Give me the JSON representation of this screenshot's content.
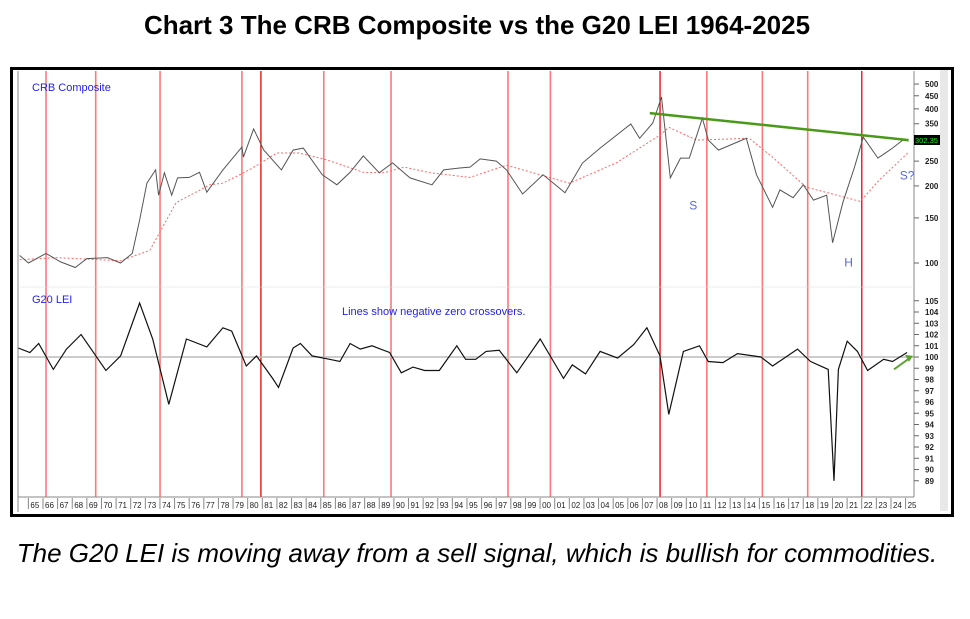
{
  "title": "Chart 3 The CRB Composite vs the G20 LEI 1964-2025",
  "caption": "The G20 LEI is moving away from a sell signal, which is bullish for commodities.",
  "chart_data": [
    {
      "type": "line",
      "title": "CRB Composite",
      "yscale": "log",
      "ylim": [
        90,
        560
      ],
      "xlim": [
        1964.1,
        2025.2
      ],
      "yticks": [
        500,
        450,
        400,
        350,
        250,
        200,
        150,
        100
      ],
      "last_value_label": "302.35",
      "colors": {
        "price": "#555555",
        "ma": "#ff6666",
        "trend": "#4a9a1a",
        "label": "#2222ee",
        "annot": "#5566ee",
        "badge_bg": "#000000",
        "badge_fg": "#22ee22"
      },
      "series": [
        {
          "name": "CRB Composite",
          "x": [
            1964.2,
            1964.8,
            1966,
            1967,
            1968,
            1968.8,
            1970.2,
            1971.1,
            1971.9,
            1972.4,
            1972.9,
            1973.5,
            1973.7,
            1974.1,
            1974.6,
            1975.0,
            1975.8,
            1976.5,
            1977.0,
            1978.1,
            1979.4,
            1979.5,
            1980.2,
            1980.9,
            1982.1,
            1982.9,
            1983.6,
            1984.9,
            1985.9,
            1986.8,
            1987.7,
            1988.8,
            1989.7,
            1990.9,
            1992.4,
            1993.2,
            1994.3,
            1995.0,
            1995.7,
            1996.8,
            1997.5,
            1998.6,
            2000.0,
            2001.5,
            2002.7,
            2003.9,
            2006.0,
            2006.6,
            2007.5,
            2008.1,
            2008.7,
            2009.4,
            2010.0,
            2010.9,
            2011.3,
            2012.0,
            2013.3,
            2013.9,
            2014.6,
            2015.7,
            2016.2,
            2017.1,
            2017.8,
            2018.5,
            2019.4,
            2019.8,
            2020.5,
            2021.3,
            2021.9,
            2022.9,
            2023.5,
            2023.9,
            2024.6,
            2025.0
          ],
          "y": [
            107,
            100,
            109,
            101,
            96,
            104,
            105,
            100,
            109,
            147,
            205,
            231,
            184,
            225,
            184,
            215,
            216,
            226,
            189,
            231,
            284,
            259,
            334,
            276,
            231,
            276,
            281,
            221,
            202,
            226,
            262,
            225,
            246,
            215,
            202,
            231,
            235,
            237,
            255,
            250,
            231,
            186,
            221,
            188,
            246,
            281,
            349,
            307,
            352,
            445,
            215,
            257,
            257,
            368,
            302,
            276,
            297,
            307,
            221,
            165,
            193,
            180,
            202,
            176,
            184,
            120,
            172,
            237,
            310,
            257,
            271,
            281,
            302,
            300
          ]
        },
        {
          "name": "Moving average",
          "x": [
            1964.2,
            1966.7,
            1971.1,
            1973.1,
            1974.9,
            1977.2,
            1978.1,
            1979.9,
            1981.8,
            1983.3,
            1985.2,
            1987.7,
            1989.1,
            1990.5,
            1992.3,
            1995.0,
            1997.5,
            2001.8,
            2005.0,
            2008.0,
            2008.6,
            2010.5,
            2014.1,
            2015.7,
            2018.0,
            2020.1,
            2021.7,
            2023.0,
            2025.0
          ],
          "y": [
            103,
            105,
            102,
            112,
            172,
            202,
            205,
            231,
            269,
            269,
            253,
            226,
            225,
            237,
            225,
            216,
            241,
            205,
            246,
            316,
            339,
            302,
            307,
            259,
            198,
            184,
            174,
            211,
            271
          ]
        },
        {
          "name": "Trendline",
          "x": [
            2007.3,
            2025.0
          ],
          "y": [
            385,
            302
          ]
        }
      ],
      "annotations": [
        {
          "text": "S",
          "x": 2010.0,
          "y": 162
        },
        {
          "text": "H",
          "x": 2020.6,
          "y": 97
        },
        {
          "text": "S?",
          "x": 2024.4,
          "y": 212
        }
      ]
    },
    {
      "type": "line",
      "title": "G20 LEI",
      "ylim": [
        88.5,
        106
      ],
      "xlim": [
        1964.1,
        2025.2
      ],
      "yticks": [
        105,
        104,
        103,
        102,
        101,
        100,
        99,
        98,
        97,
        96,
        95,
        94,
        93,
        92,
        91,
        90,
        89
      ],
      "zero_line": 100,
      "note": "Lines show negative zero crossovers.",
      "series": [
        {
          "name": "G20 LEI",
          "x": [
            1964.1,
            1964.9,
            1965.5,
            1966.5,
            1967.4,
            1968.4,
            1970.1,
            1971.1,
            1972.4,
            1973.3,
            1974.4,
            1975.6,
            1977.0,
            1978.1,
            1978.7,
            1979.7,
            1980.4,
            1981.5,
            1981.9,
            1982.9,
            1983.4,
            1984.2,
            1985.4,
            1986.1,
            1986.8,
            1987.5,
            1988.3,
            1989.5,
            1990.3,
            1991.1,
            1991.9,
            1992.9,
            1994.1,
            1994.7,
            1995.4,
            1996.1,
            1997.0,
            1998.2,
            1999.8,
            2001.4,
            2002.0,
            2002.9,
            2003.9,
            2005.1,
            2006.2,
            2007.1,
            2008.0,
            2008.6,
            2009.6,
            2010.7,
            2011.3,
            2012.3,
            2013.3,
            2014.9,
            2015.7,
            2017.4,
            2018.3,
            2019.5,
            2019.9,
            2020.2,
            2020.8,
            2021.5,
            2022.2,
            2023.3,
            2023.9,
            2024.9
          ],
          "y": [
            100.8,
            100.4,
            101.2,
            98.9,
            100.7,
            102.0,
            98.8,
            100.1,
            104.8,
            101.6,
            95.8,
            101.6,
            100.9,
            102.6,
            102.3,
            99.2,
            100.1,
            98.1,
            97.3,
            100.8,
            101.2,
            100.1,
            99.8,
            99.6,
            101.2,
            100.7,
            101.0,
            100.4,
            98.6,
            99.1,
            98.8,
            98.8,
            101.0,
            99.8,
            99.8,
            100.5,
            100.6,
            98.6,
            101.6,
            98.1,
            99.3,
            98.5,
            100.5,
            99.9,
            101.1,
            102.6,
            100.1,
            94.9,
            100.5,
            101.0,
            99.6,
            99.5,
            100.3,
            100.0,
            99.2,
            100.7,
            99.6,
            98.9,
            89.0,
            98.9,
            101.4,
            100.5,
            98.8,
            99.8,
            99.6,
            100.4
          ]
        }
      ],
      "arrow": {
        "from": [
          2024.0,
          98.9
        ],
        "to": [
          2025.3,
          100.1
        ]
      }
    }
  ],
  "signal_years": [
    1966.0,
    1969.4,
    1973.8,
    1979.4,
    1980.7,
    1985.0,
    1989.6,
    1997.6,
    2000.5,
    2008.0,
    2011.2,
    2015.0,
    2018.1,
    2021.8
  ],
  "signal_strong": [
    1980.7,
    2008.0,
    2021.8
  ],
  "x_tick_labels": [
    "65",
    "66",
    "67",
    "68",
    "69",
    "70",
    "71",
    "72",
    "73",
    "74",
    "75",
    "76",
    "77",
    "78",
    "79",
    "80",
    "81",
    "82",
    "83",
    "84",
    "85",
    "86",
    "87",
    "88",
    "89",
    "90",
    "91",
    "92",
    "93",
    "94",
    "95",
    "96",
    "97",
    "98",
    "99",
    "00",
    "01",
    "02",
    "03",
    "04",
    "05",
    "06",
    "07",
    "08",
    "09",
    "10",
    "11",
    "12",
    "13",
    "14",
    "15",
    "16",
    "17",
    "18",
    "19",
    "20",
    "21",
    "22",
    "23",
    "24",
    "25"
  ]
}
